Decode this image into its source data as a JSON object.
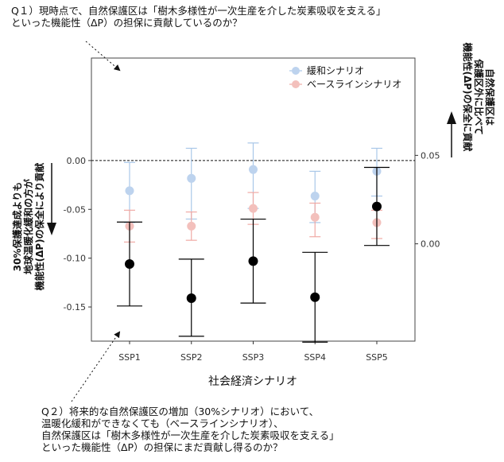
{
  "questions": {
    "q1": [
      "Q１）現時点で、自然保護区は「樹木多様性が一次生産を介した炭素吸収を支える」",
      "といった機能性（ΔP）の担保に貢献しているのか？"
    ],
    "q2": [
      "Q２）将来的な自然保護区の増加（30%シナリオ）において、",
      "温暖化緩和ができなくても（ベースラインシナリオ）、",
      "自然保護区は「樹木多様性が一次生産を介した炭素吸収を支える」",
      "といった機能性（ΔP）の担保にまだ貢献し得るのか？"
    ]
  },
  "side_notes": {
    "left": [
      "30%保護達成よりも",
      "地球温暖化緩和の方が",
      "機能性(ΔP)の保全により貢献"
    ],
    "right": [
      "自然保護区は",
      "保護区外に比べて",
      "機能性(ΔP)の保全に貢献"
    ]
  },
  "colors": {
    "mitigation": "#a9c7e8",
    "baseline": "#f0aaa5",
    "difference": "#000000",
    "axis": "#333333"
  },
  "chart_data": {
    "type": "scatter",
    "xlabel": "社会経済シナリオ",
    "categories": [
      "SSP1",
      "SSP2",
      "SSP3",
      "SSP4",
      "SSP5"
    ],
    "left_axis": {
      "ticks": [
        0.0,
        -0.05,
        -0.1,
        -0.15
      ],
      "tick_labels": [
        "0.00",
        "-0.05",
        "-0.10",
        "-0.15"
      ],
      "range": [
        -0.185,
        0.105
      ]
    },
    "right_axis": {
      "ticks": [
        0.0,
        0.05
      ],
      "tick_labels": [
        "0.00",
        "0.05"
      ],
      "range": [
        -0.055,
        0.105
      ]
    },
    "reference_line": 0.0,
    "legend": {
      "placement": "top-right",
      "entries": [
        "緩和シナリオ",
        "ベースラインシナリオ"
      ]
    },
    "series": [
      {
        "name": "緩和シナリオ",
        "axis": "right",
        "values": [
          0.03,
          0.037,
          0.042,
          0.027,
          0.041
        ],
        "lower": [
          0.012,
          0.014,
          0.02,
          0.012,
          0.027
        ],
        "upper": [
          0.046,
          0.054,
          0.057,
          0.041,
          0.054
        ]
      },
      {
        "name": "ベースラインシナリオ",
        "axis": "right",
        "values": [
          0.01,
          0.01,
          0.02,
          0.015,
          0.012
        ],
        "lower": [
          0.001,
          0.002,
          0.011,
          0.004,
          0.003
        ],
        "upper": [
          0.019,
          0.018,
          0.029,
          0.023,
          0.019
        ]
      },
      {
        "axis": "left",
        "values": [
          -0.106,
          -0.141,
          -0.103,
          -0.14,
          -0.047
        ],
        "lower": [
          -0.149,
          -0.18,
          -0.146,
          -0.186,
          -0.087
        ],
        "upper": [
          -0.063,
          -0.101,
          -0.06,
          -0.094,
          -0.007
        ]
      }
    ]
  }
}
